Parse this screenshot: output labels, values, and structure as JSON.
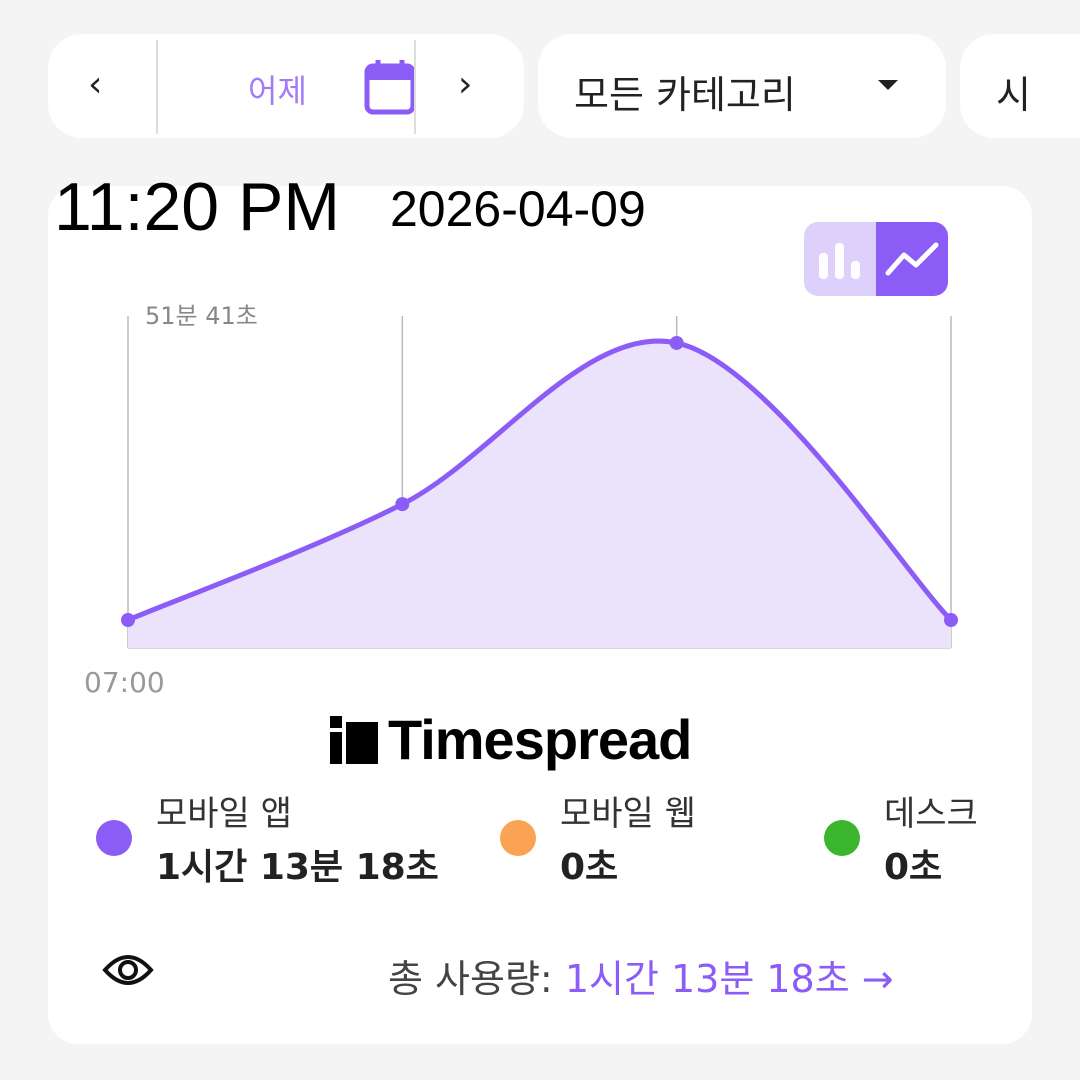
{
  "date_nav": {
    "prev": "‹",
    "label": "어제",
    "next": "›"
  },
  "category": {
    "selected": "모든 카테고리"
  },
  "third_filter": {
    "label": "시"
  },
  "overlay": {
    "date": "2026-04-09",
    "time": "11:20 PM"
  },
  "colors": {
    "accent": "#8b5cf6",
    "fill": "#ebe3fc",
    "toggle_bg": "#ddd0fb",
    "mobile_app": "#8b5cf6",
    "mobile_web": "#fba254",
    "desktop": "#3bb52e"
  },
  "chart_data": {
    "type": "area",
    "x": [
      "07:00",
      "",
      "",
      ""
    ],
    "ymax_label": "51분 41초",
    "ylim": [
      0,
      51.68
    ],
    "series": [
      {
        "name": "모바일 앱",
        "values": [
          0,
          19.7,
          47.1,
          0
        ]
      }
    ],
    "grid": true,
    "view_toggle": [
      "bar",
      "line"
    ],
    "active_view": "line"
  },
  "legend": [
    {
      "name": "모바일 앱",
      "value": "1시간 13분 18초"
    },
    {
      "name": "모바일 웹",
      "value": "0초"
    },
    {
      "name": "데스크",
      "value": "0초"
    }
  ],
  "total": {
    "label": "총 사용량: ",
    "value": "1시간 13분 18초",
    "arrow": "→"
  },
  "watermark": "Timespread"
}
